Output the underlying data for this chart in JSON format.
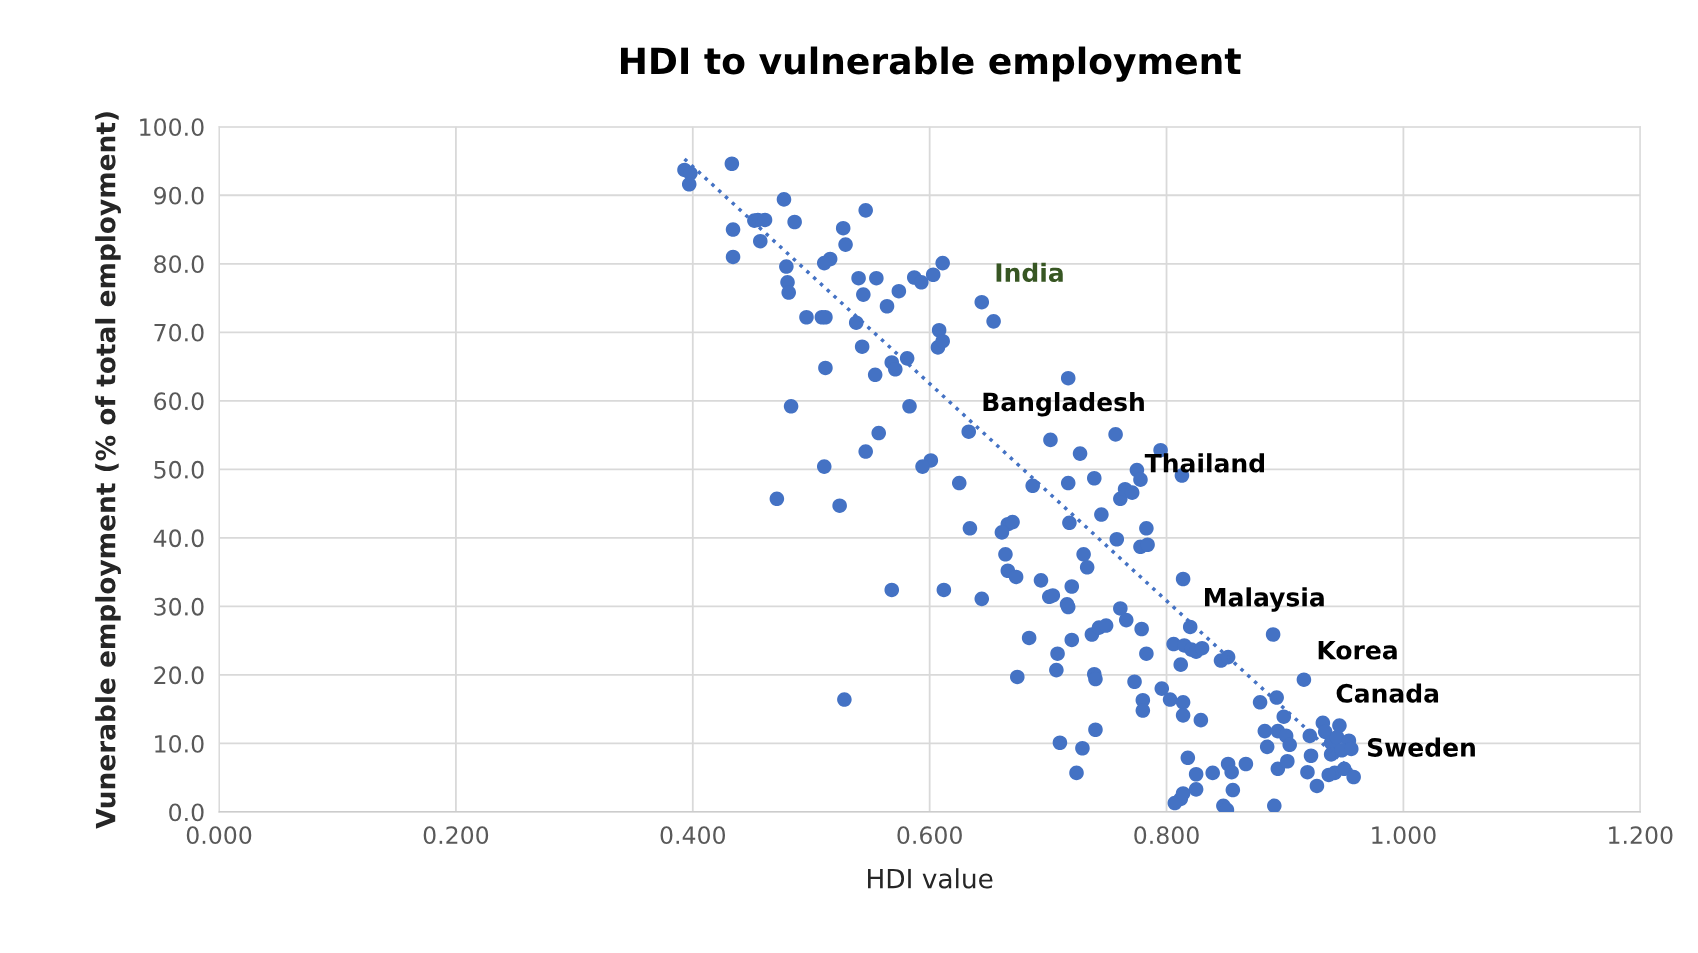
{
  "chart_data": {
    "type": "scatter",
    "title": "HDI to vulnerable employment",
    "xlabel": "HDI value",
    "ylabel": "Vunerable employment (% of total employment)",
    "xlim": [
      0,
      1.2
    ],
    "ylim": [
      0,
      100
    ],
    "xticks": [
      {
        "value": 0,
        "label": "0.000"
      },
      {
        "value": 0.2,
        "label": "0.200"
      },
      {
        "value": 0.4,
        "label": "0.400"
      },
      {
        "value": 0.6,
        "label": "0.600"
      },
      {
        "value": 0.8,
        "label": "0.800"
      },
      {
        "value": 1.0,
        "label": "1.000"
      },
      {
        "value": 1.2,
        "label": "1.200"
      }
    ],
    "yticks": [
      {
        "value": 0,
        "label": "0.0"
      },
      {
        "value": 10,
        "label": "10.0"
      },
      {
        "value": 20,
        "label": "20.0"
      },
      {
        "value": 30,
        "label": "30.0"
      },
      {
        "value": 40,
        "label": "40.0"
      },
      {
        "value": 50,
        "label": "50.0"
      },
      {
        "value": 60,
        "label": "60.0"
      },
      {
        "value": 70,
        "label": "70.0"
      },
      {
        "value": 80,
        "label": "80.0"
      },
      {
        "value": 90,
        "label": "90.0"
      },
      {
        "value": 100,
        "label": "100.0"
      }
    ],
    "grid": true,
    "series": [
      {
        "color": "#4472c4",
        "marker": "circle",
        "x": [
          0.393,
          0.398,
          0.397,
          0.433,
          0.434,
          0.434,
          0.452,
          0.455,
          0.461,
          0.457,
          0.477,
          0.486,
          0.479,
          0.48,
          0.481,
          0.509,
          0.496,
          0.512,
          0.483,
          0.512,
          0.527,
          0.529,
          0.516,
          0.511,
          0.546,
          0.54,
          0.544,
          0.555,
          0.574,
          0.564,
          0.538,
          0.543,
          0.568,
          0.571,
          0.581,
          0.554,
          0.557,
          0.546,
          0.511,
          0.524,
          0.471,
          0.528,
          0.568,
          0.583,
          0.611,
          0.587,
          0.593,
          0.603,
          0.607,
          0.608,
          0.611,
          0.644,
          0.654,
          0.601,
          0.594,
          0.625,
          0.633,
          0.717,
          0.612,
          0.634,
          0.666,
          0.67,
          0.687,
          0.661,
          0.664,
          0.666,
          0.673,
          0.694,
          0.701,
          0.717,
          0.702,
          0.727,
          0.739,
          0.718,
          0.745,
          0.758,
          0.733,
          0.73,
          0.72,
          0.717,
          0.684,
          0.644,
          0.716,
          0.704,
          0.72,
          0.708,
          0.707,
          0.737,
          0.743,
          0.749,
          0.739,
          0.74,
          0.674,
          0.761,
          0.766,
          0.779,
          0.761,
          0.765,
          0.771,
          0.775,
          0.778,
          0.757,
          0.783,
          0.778,
          0.784,
          0.813,
          0.795,
          0.814,
          0.82,
          0.806,
          0.783,
          0.773,
          0.796,
          0.78,
          0.78,
          0.803,
          0.814,
          0.814,
          0.829,
          0.812,
          0.815,
          0.821,
          0.825,
          0.83,
          0.846,
          0.852,
          0.74,
          0.71,
          0.729,
          0.724,
          0.818,
          0.825,
          0.825,
          0.839,
          0.852,
          0.855,
          0.867,
          0.856,
          0.848,
          0.851,
          0.812,
          0.807,
          0.814,
          0.89,
          0.879,
          0.893,
          0.916,
          0.883,
          0.894,
          0.899,
          0.901,
          0.885,
          0.904,
          0.894,
          0.902,
          0.891,
          0.921,
          0.922,
          0.919,
          0.927,
          0.932,
          0.934,
          0.939,
          0.946,
          0.944,
          0.954,
          0.939,
          0.948,
          0.956,
          0.942,
          0.95,
          0.958,
          0.937
        ],
        "values": [
          93.7,
          93.2,
          91.6,
          94.6,
          85.0,
          81.0,
          86.3,
          86.4,
          86.4,
          83.3,
          89.4,
          86.1,
          79.6,
          77.3,
          75.8,
          72.2,
          72.2,
          72.2,
          59.2,
          64.8,
          85.2,
          82.8,
          80.7,
          80.1,
          87.8,
          77.9,
          75.5,
          77.9,
          76.0,
          73.8,
          71.4,
          67.9,
          65.6,
          64.6,
          66.2,
          63.8,
          55.3,
          52.6,
          50.4,
          44.7,
          45.7,
          16.4,
          32.4,
          59.2,
          80.1,
          78.0,
          77.3,
          78.4,
          67.8,
          70.3,
          68.7,
          74.4,
          71.6,
          51.3,
          50.4,
          48.0,
          55.5,
          63.3,
          32.4,
          41.4,
          42.0,
          42.3,
          47.6,
          40.8,
          37.6,
          35.2,
          34.3,
          33.8,
          31.4,
          48.0,
          54.3,
          52.3,
          48.7,
          42.2,
          43.4,
          39.8,
          35.7,
          37.6,
          32.9,
          29.9,
          25.4,
          31.1,
          30.3,
          31.6,
          25.1,
          23.1,
          20.7,
          25.9,
          26.9,
          27.2,
          20.1,
          19.4,
          19.7,
          29.7,
          28.0,
          26.7,
          45.7,
          47.1,
          46.6,
          49.9,
          48.5,
          55.1,
          41.4,
          38.7,
          39.0,
          49.1,
          52.8,
          34.0,
          27.0,
          24.5,
          23.1,
          19.0,
          18.0,
          16.3,
          14.8,
          16.4,
          16.0,
          14.1,
          13.4,
          21.5,
          24.3,
          23.7,
          23.4,
          23.9,
          22.1,
          22.6,
          12.0,
          10.1,
          9.3,
          5.7,
          7.9,
          5.5,
          3.3,
          5.7,
          7.0,
          5.8,
          7.0,
          3.2,
          0.9,
          0.3,
          1.9,
          1.3,
          2.7,
          25.9,
          16.0,
          16.7,
          19.3,
          11.8,
          11.8,
          13.9,
          11.1,
          9.5,
          9.8,
          6.3,
          7.4,
          0.9,
          11.1,
          8.2,
          5.8,
          3.8,
          13.0,
          11.7,
          10.1,
          12.6,
          10.9,
          10.4,
          8.4,
          9.0,
          9.2,
          5.7,
          6.3,
          5.1,
          5.4
        ]
      },
      {
        "type": "line",
        "color": "#4472c4",
        "line_style": "dotted",
        "x": [
          0.393,
          0.958
        ],
        "values": [
          95.3,
          5.8
        ]
      }
    ],
    "annotations": [
      {
        "text": "India",
        "x": 0.644,
        "y": 74.4
      },
      {
        "text": "Bangladesh",
        "x": 0.633,
        "y": 55.5
      },
      {
        "text": "Thailand",
        "x": 0.771,
        "y": 46.6
      },
      {
        "text": "Malaysia",
        "x": 0.82,
        "y": 27.0
      },
      {
        "text": "Korea",
        "x": 0.916,
        "y": 19.3
      },
      {
        "text": "Canada",
        "x": 0.932,
        "y": 13.0
      },
      {
        "text": "Sweden",
        "x": 0.958,
        "y": 5.1
      }
    ]
  }
}
